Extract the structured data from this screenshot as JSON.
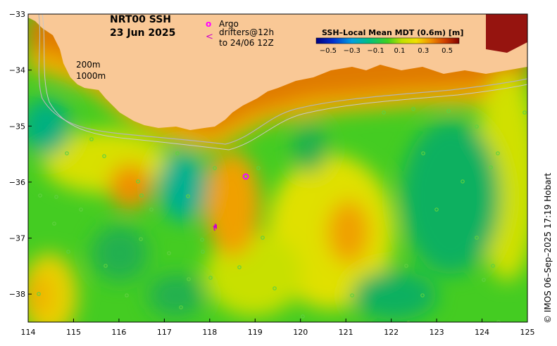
{
  "title": {
    "product": "NRT00 SSH",
    "date": "23 Jun 2025"
  },
  "legend": {
    "argo_symbol": "o",
    "argo_label": "Argo",
    "drifter_symbol": "<",
    "drifter_label_line1": "drifters@12h",
    "drifter_label_line2": "to 24/06 12Z"
  },
  "contour_labels": {
    "c200": "200m",
    "c1000": "1000m"
  },
  "colorbar": {
    "title": "SSH–Local Mean MDT (0.6m) [m]",
    "ticks": [
      "−0.5",
      "−0.3",
      "−0.1",
      "0.1",
      "0.3",
      "0.5"
    ],
    "values": [
      -0.5,
      -0.3,
      -0.1,
      0.1,
      0.3,
      0.5
    ]
  },
  "axes": {
    "x_ticks": [
      "114",
      "115",
      "116",
      "117",
      "118",
      "119",
      "120",
      "121",
      "122",
      "123",
      "124",
      "125"
    ],
    "y_ticks": [
      "−33",
      "−34",
      "−35",
      "−36",
      "−37",
      "−38"
    ],
    "lon_range": [
      114,
      125
    ],
    "lat_range": [
      -38.5,
      -33
    ]
  },
  "credit": "© IMOS 06–Sep–2025 17:19 Hobart",
  "colors": {
    "land": "#f9c896",
    "argo": "#ff00ff",
    "drifter": "#cc00cc",
    "isobath": "#b4b4b4"
  }
}
